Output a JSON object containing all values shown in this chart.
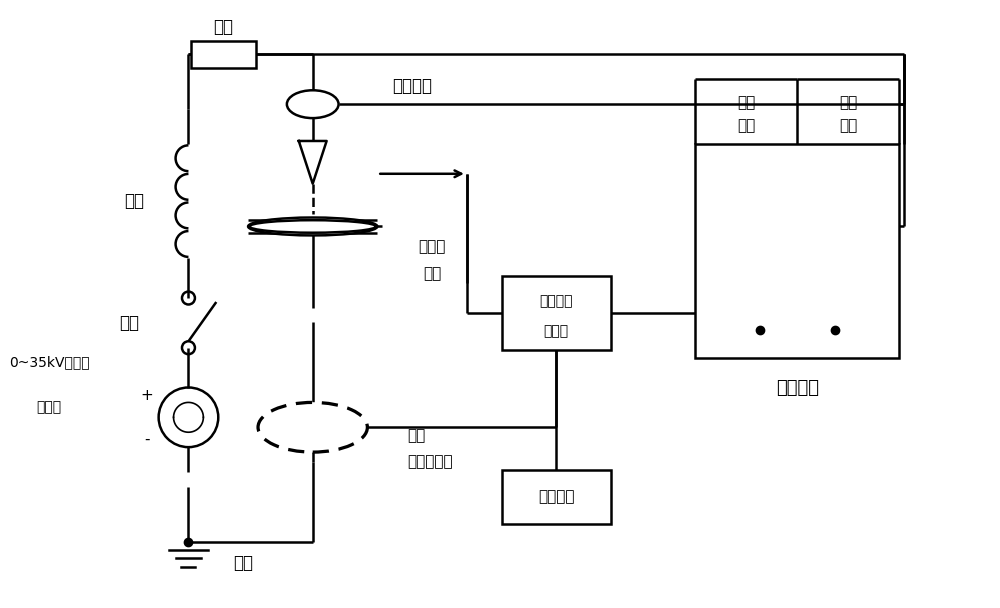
{
  "bg_color": "#ffffff",
  "lc": "#000000",
  "lw": 1.8,
  "labels": {
    "resistor": "电阻",
    "hv_probe": "高压探头",
    "inductor": "电感",
    "switch": "开关",
    "source_line1": "0~35kV可调交",
    "source_line2": "流电源",
    "ground": "接地",
    "arc_sensor_line1": "弧光传",
    "arc_sensor_line2": "感器",
    "hall_line1": "霍尔",
    "hall_line2": "电流传感器",
    "optical_line1": "光信号采",
    "optical_line2": "集装置",
    "data_acq": "数据采集",
    "recorder": "录波装置",
    "arc_current_line1": "电弧",
    "arc_current_line2": "电流",
    "arc_voltage_line1": "电弧",
    "arc_voltage_line2": "电压"
  },
  "figsize": [
    10.0,
    6.08
  ],
  "dpi": 100
}
